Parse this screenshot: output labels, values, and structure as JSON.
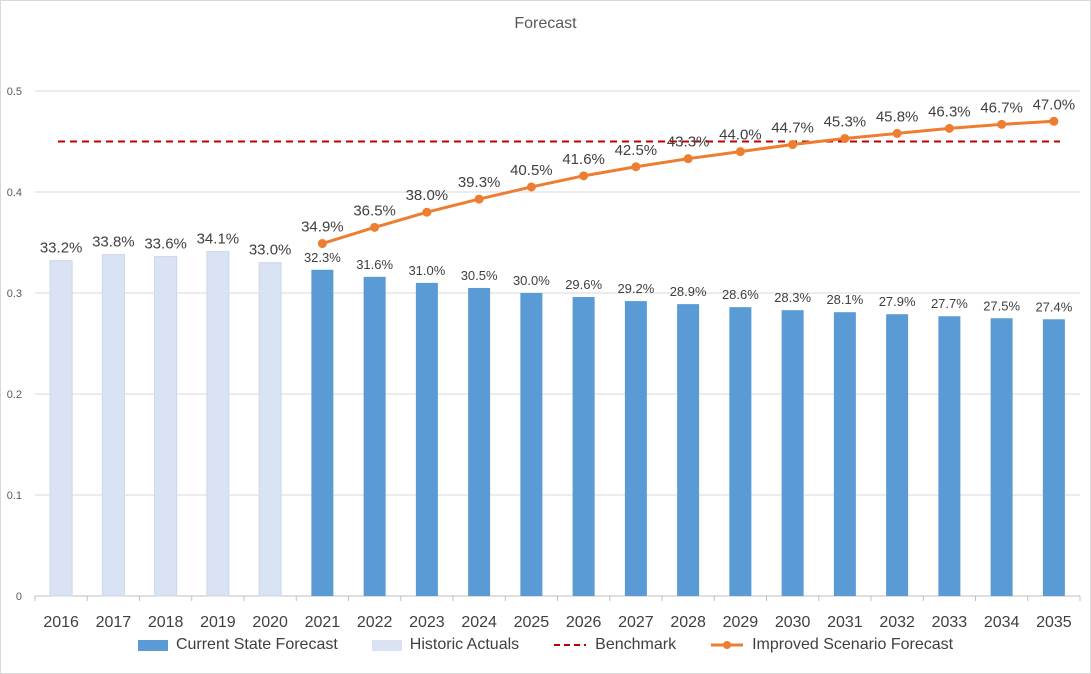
{
  "chart_data": {
    "type": "bar",
    "title": "Forecast",
    "xlabel": "",
    "ylabel": "",
    "ylim": [
      0,
      0.5
    ],
    "yticks": [
      "0",
      "0.1",
      "0.2",
      "0.3",
      "0.4",
      "0.5"
    ],
    "grid": true,
    "legend_position": "bottom",
    "categories": [
      "2016",
      "2017",
      "2018",
      "2019",
      "2020",
      "2021",
      "2022",
      "2023",
      "2024",
      "2025",
      "2026",
      "2027",
      "2028",
      "2029",
      "2030",
      "2031",
      "2032",
      "2033",
      "2034",
      "2035"
    ],
    "series": [
      {
        "name": "Current State Forecast",
        "kind": "bar",
        "color": "#5b9bd5",
        "x": [
          "2021",
          "2022",
          "2023",
          "2024",
          "2025",
          "2026",
          "2027",
          "2028",
          "2029",
          "2030",
          "2031",
          "2032",
          "2033",
          "2034",
          "2035"
        ],
        "values": [
          0.323,
          0.316,
          0.31,
          0.305,
          0.3,
          0.296,
          0.292,
          0.289,
          0.286,
          0.283,
          0.281,
          0.279,
          0.277,
          0.275,
          0.274
        ],
        "labels": [
          "32.3%",
          "31.6%",
          "31.0%",
          "30.5%",
          "30.0%",
          "29.6%",
          "29.2%",
          "28.9%",
          "28.6%",
          "28.3%",
          "28.1%",
          "27.9%",
          "27.7%",
          "27.5%",
          "27.4%"
        ]
      },
      {
        "name": "Historic Actuals",
        "kind": "bar",
        "color": "#dae3f3",
        "x": [
          "2016",
          "2017",
          "2018",
          "2019",
          "2020"
        ],
        "values": [
          0.332,
          0.338,
          0.336,
          0.341,
          0.33
        ],
        "labels": [
          "33.2%",
          "33.8%",
          "33.6%",
          "34.1%",
          "33.0%"
        ]
      },
      {
        "name": "Benchmark",
        "kind": "dashed-line",
        "color": "#c00000",
        "value": 0.45
      },
      {
        "name": "Improved Scenario Forecast",
        "kind": "line",
        "color": "#ed7d31",
        "x": [
          "2021",
          "2022",
          "2023",
          "2024",
          "2025",
          "2026",
          "2027",
          "2028",
          "2029",
          "2030",
          "2031",
          "2032",
          "2033",
          "2034",
          "2035"
        ],
        "values": [
          0.349,
          0.365,
          0.38,
          0.393,
          0.405,
          0.416,
          0.425,
          0.433,
          0.44,
          0.447,
          0.453,
          0.458,
          0.463,
          0.467,
          0.47
        ],
        "labels": [
          "34.9%",
          "36.5%",
          "38.0%",
          "39.3%",
          "40.5%",
          "41.6%",
          "42.5%",
          "43.3%",
          "44.0%",
          "44.7%",
          "45.3%",
          "45.8%",
          "46.3%",
          "46.7%",
          "47.0%"
        ]
      }
    ]
  }
}
